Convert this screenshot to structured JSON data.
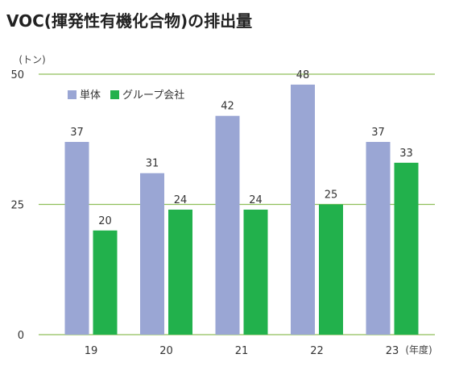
{
  "chart_data": {
    "type": "bar",
    "title": "VOC(揮発性有機化合物)の排出量",
    "ylabel": "(トン)",
    "xlabel": "(年度)",
    "categories": [
      "19",
      "20",
      "21",
      "22",
      "23"
    ],
    "series": [
      {
        "name": "単体",
        "values": [
          37,
          31,
          42,
          48,
          37
        ],
        "color": "#9aa6d4"
      },
      {
        "name": "グループ会社",
        "values": [
          20,
          24,
          24,
          25,
          33
        ],
        "color": "#22b14c"
      }
    ],
    "ylim": [
      0,
      50
    ],
    "yticks": [
      "0",
      "25",
      "50"
    ],
    "grid": true,
    "grid_color": "#8fbf5a",
    "legend_position": "top-left"
  }
}
